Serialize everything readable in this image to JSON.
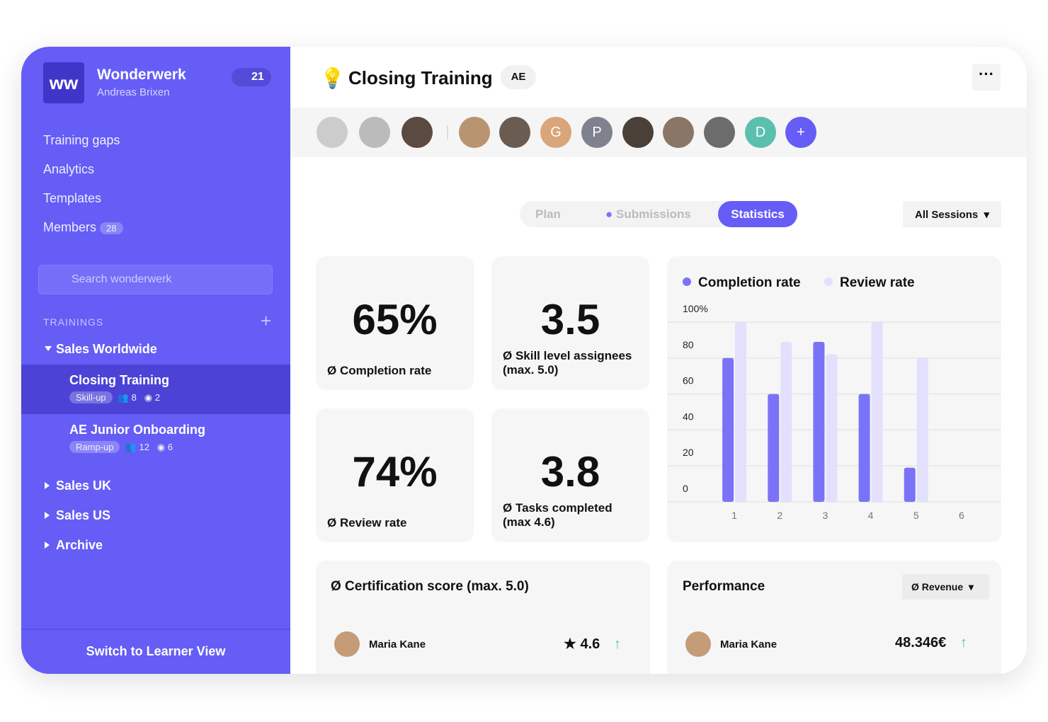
{
  "sidebar": {
    "brand": "Wonderwerk",
    "user": "Andreas Brixen",
    "badge": "21",
    "nav": [
      "Training gaps",
      "Analytics",
      "Templates",
      "Members"
    ],
    "members_count": "28",
    "search": "Search wonderwerk",
    "section": "TRAININGS",
    "group": "Sales Worldwide",
    "trainings": [
      {
        "name": "Closing Training",
        "tag": "Skill-up",
        "people": "8",
        "submissions": "2"
      },
      {
        "name": "AE Junior Onboarding",
        "tag": "Ramp-up",
        "people": "12",
        "submissions": "6"
      }
    ],
    "groups": [
      "Sales UK",
      "Sales US",
      "Archive"
    ],
    "footer": "Switch to Learner View"
  },
  "header": {
    "title": "Closing Training",
    "tag": "AE",
    "initials": [
      "G",
      "P",
      "D"
    ]
  },
  "tabs": [
    "Plan",
    "Submissions",
    "Statistics"
  ],
  "dropdown": "All Sessions",
  "stats": [
    {
      "value": "65%",
      "label": "Ø Completion rate"
    },
    {
      "value": "3.5",
      "label": "Ø Skill level assignees (max. 5.0)"
    },
    {
      "value": "74%",
      "label": "Ø Review rate"
    },
    {
      "value": "3.8",
      "label": "Ø Tasks completed (max 4.6)"
    }
  ],
  "chart_data": {
    "type": "bar",
    "categories": [
      "1",
      "2",
      "3",
      "4",
      "5",
      "6"
    ],
    "series": [
      {
        "name": "Completion rate",
        "color": "#7b73f7",
        "values": [
          80,
          60,
          89,
          60,
          19,
          null
        ]
      },
      {
        "name": "Review rate",
        "color": "#e2e0fc",
        "values": [
          100,
          89,
          82,
          100,
          80,
          null
        ]
      }
    ],
    "ylim": [
      0,
      100
    ],
    "yticks": [
      0,
      20,
      40,
      60,
      80,
      {
        "value": 100,
        "label": "100%"
      }
    ],
    "grid": true
  },
  "certification": {
    "title": "Ø Certification score (max. 5.0)",
    "name": "Maria Kane",
    "score": "4.6"
  },
  "performance": {
    "title": "Performance",
    "dropdown": "Ø Revenue",
    "name": "Maria Kane",
    "value": "48.346€"
  }
}
